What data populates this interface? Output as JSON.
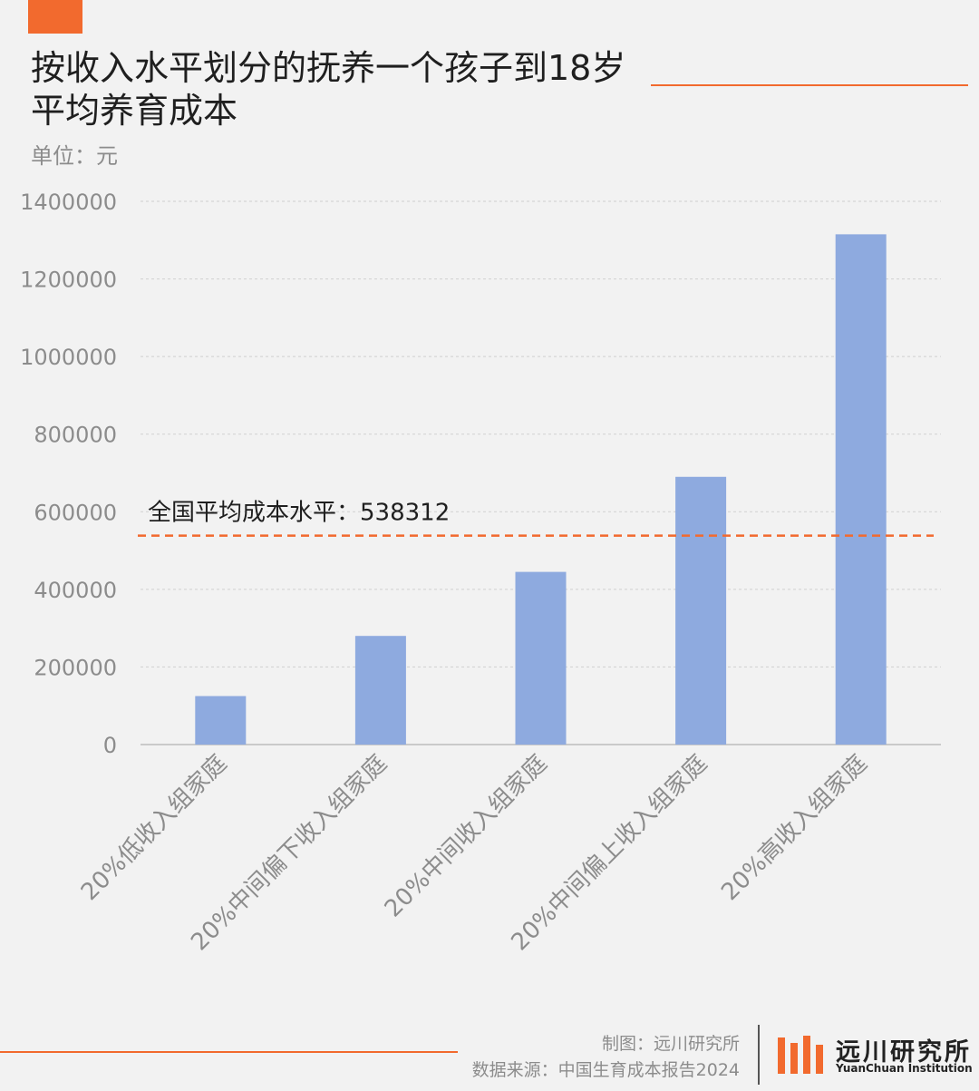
{
  "header": {
    "title_line1": "按收入水平划分的抚养一个孩子到18岁",
    "title_line2": "平均养育成本",
    "unit": "单位：元"
  },
  "colors": {
    "accent": "#f26a2e",
    "bar": "#8eaadf",
    "grid": "#cfcfcf",
    "text": "#1f1f1f",
    "muted": "#8c8c8c"
  },
  "chart_data": {
    "type": "bar",
    "title": "按收入水平划分的抚养一个孩子到18岁平均养育成本",
    "ylabel": "单位：元",
    "xlabel": "",
    "categories": [
      "20%低收入组家庭",
      "20%中间偏下收入组家庭",
      "20%中间收入组家庭",
      "20%中间偏上收入组家庭",
      "20%高收入组家庭"
    ],
    "values": [
      125000,
      280000,
      445000,
      690000,
      1315000
    ],
    "ylim": [
      0,
      1400000
    ],
    "yticks": [
      0,
      200000,
      400000,
      600000,
      800000,
      1000000,
      1200000,
      1400000
    ],
    "grid": true,
    "reference_line": {
      "value": 538312,
      "label": "全国平均成本水平：538312"
    }
  },
  "footer": {
    "credit": "制图：远川研究所",
    "source": "数据来源：中国生育成本报告2024",
    "logo_cn": "远川研究所",
    "logo_en": "YuanChuan Institution"
  }
}
